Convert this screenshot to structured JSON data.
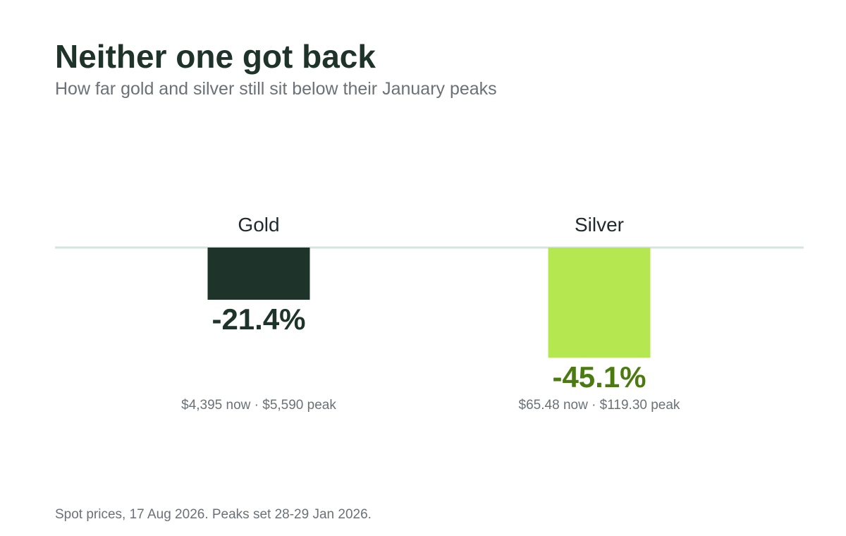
{
  "title": "Neither one got back",
  "subtitle": "How far gold and silver still sit below their January peaks",
  "footnote": "Spot prices, 17 Aug 2026. Peaks set 28-29 Jan 2026.",
  "colors": {
    "gold_bar": "#1e3329",
    "gold_label": "#1e3329",
    "silver_bar": "#b5e850",
    "silver_label": "#4a7a10",
    "baseline": "#d4e5de",
    "category": "#1e2a30",
    "detail": "#6b7177"
  },
  "chart_data": {
    "type": "bar",
    "categories": [
      "Gold",
      "Silver"
    ],
    "values": [
      -21.4,
      -45.1
    ],
    "value_labels": [
      "-21.4%",
      "-45.1%"
    ],
    "details": [
      {
        "now": "$4,395 now",
        "separator": "·",
        "peak": "$5,590 peak"
      },
      {
        "now": "$65.48 now",
        "separator": "·",
        "peak": "$119.30 peak"
      }
    ],
    "ylim": [
      -100,
      0
    ],
    "grid": false
  }
}
